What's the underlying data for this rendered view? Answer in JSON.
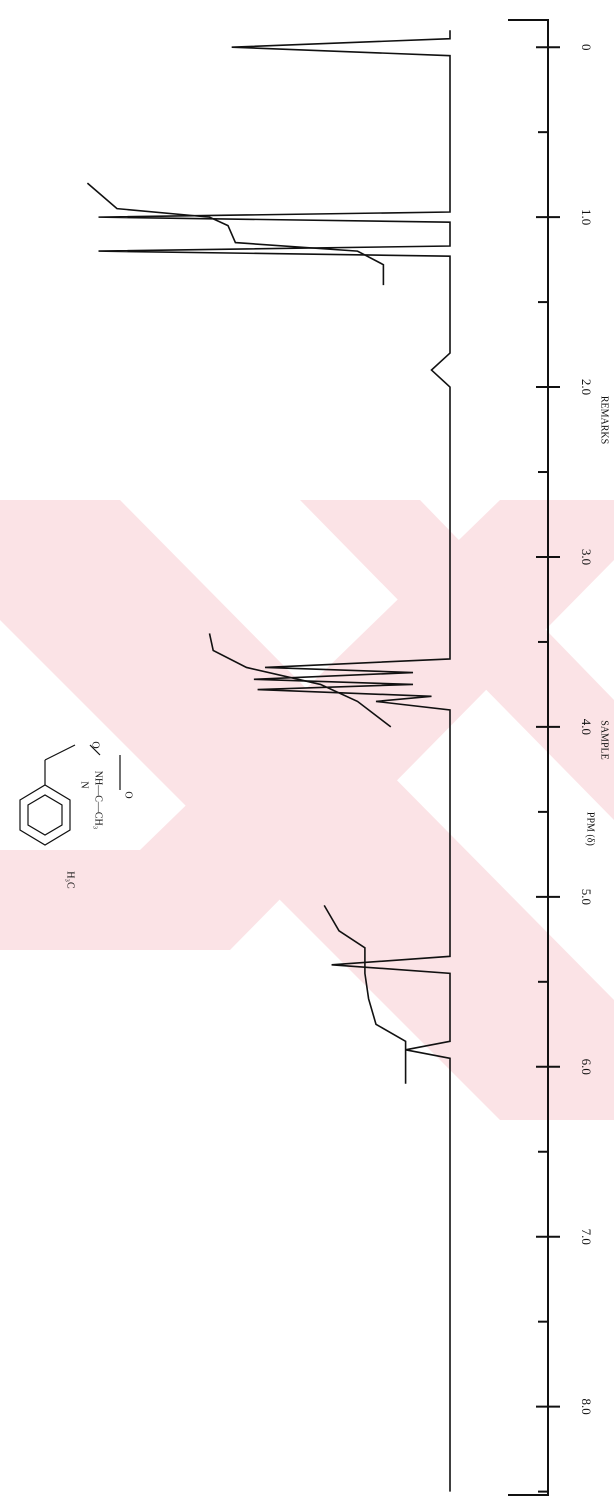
{
  "chart_data": {
    "type": "line",
    "xlabel": "PPM (δ)",
    "xlim": [
      -0.16,
      8.52
    ],
    "ylim": [
      0,
      100
    ],
    "xticks": [
      {
        "value": 0,
        "label": "0"
      },
      {
        "value": 1,
        "label": "1.0"
      },
      {
        "value": 2,
        "label": "2.0"
      },
      {
        "value": 3,
        "label": "3.0"
      },
      {
        "value": 4,
        "label": "4.0"
      },
      {
        "value": 5,
        "label": "5.0"
      },
      {
        "value": 6,
        "label": "6.0"
      },
      {
        "value": 7,
        "label": "7.0"
      },
      {
        "value": 8,
        "label": "8.0"
      }
    ],
    "minor_xticks": [
      0.5,
      1.5,
      2.5,
      3.5,
      4.5,
      5.5,
      6.5,
      7.5,
      8.5
    ],
    "series": [
      {
        "color": "#111111",
        "x": [
          -0.1,
          -0.05,
          0,
          0.05,
          0.9,
          0.97,
          1.0,
          1.03,
          1.17,
          1.2,
          1.23,
          1.8,
          1.9,
          2.0,
          3.6,
          3.65,
          3.68,
          3.72,
          3.75,
          3.78,
          3.82,
          3.85,
          3.9,
          5.35,
          5.4,
          5.45,
          5.85,
          5.9,
          5.95,
          8.5
        ],
        "values": [
          0,
          0,
          59,
          0,
          0,
          0,
          95,
          0,
          0,
          95,
          0,
          0,
          5,
          0,
          0,
          50,
          10,
          53,
          10,
          52,
          5,
          20,
          0,
          0,
          32,
          0,
          0,
          12,
          0,
          0
        ]
      },
      {
        "color": "#111111",
        "x": [
          0.8,
          0.95,
          1.0,
          1.05,
          1.15,
          1.2,
          1.28,
          1.4
        ],
        "values": [
          98,
          90,
          65,
          60,
          58,
          25,
          18,
          18
        ]
      },
      {
        "color": "#111111",
        "x": [
          3.45,
          3.55,
          3.65,
          3.75,
          3.85,
          4.0
        ],
        "values": [
          65,
          64,
          55,
          35,
          25,
          16
        ]
      },
      {
        "color": "#111111",
        "x": [
          5.05,
          5.2,
          5.3,
          5.45,
          5.6,
          5.75,
          5.85,
          5.95,
          6.1
        ],
        "values": [
          34,
          30,
          23,
          23,
          22,
          20,
          12,
          12,
          12
        ]
      }
    ],
    "annotations": [
      "REMARKS",
      "SAMPLE",
      "H₃C",
      "NH—C—CH₃",
      "O",
      "N",
      "O"
    ]
  }
}
